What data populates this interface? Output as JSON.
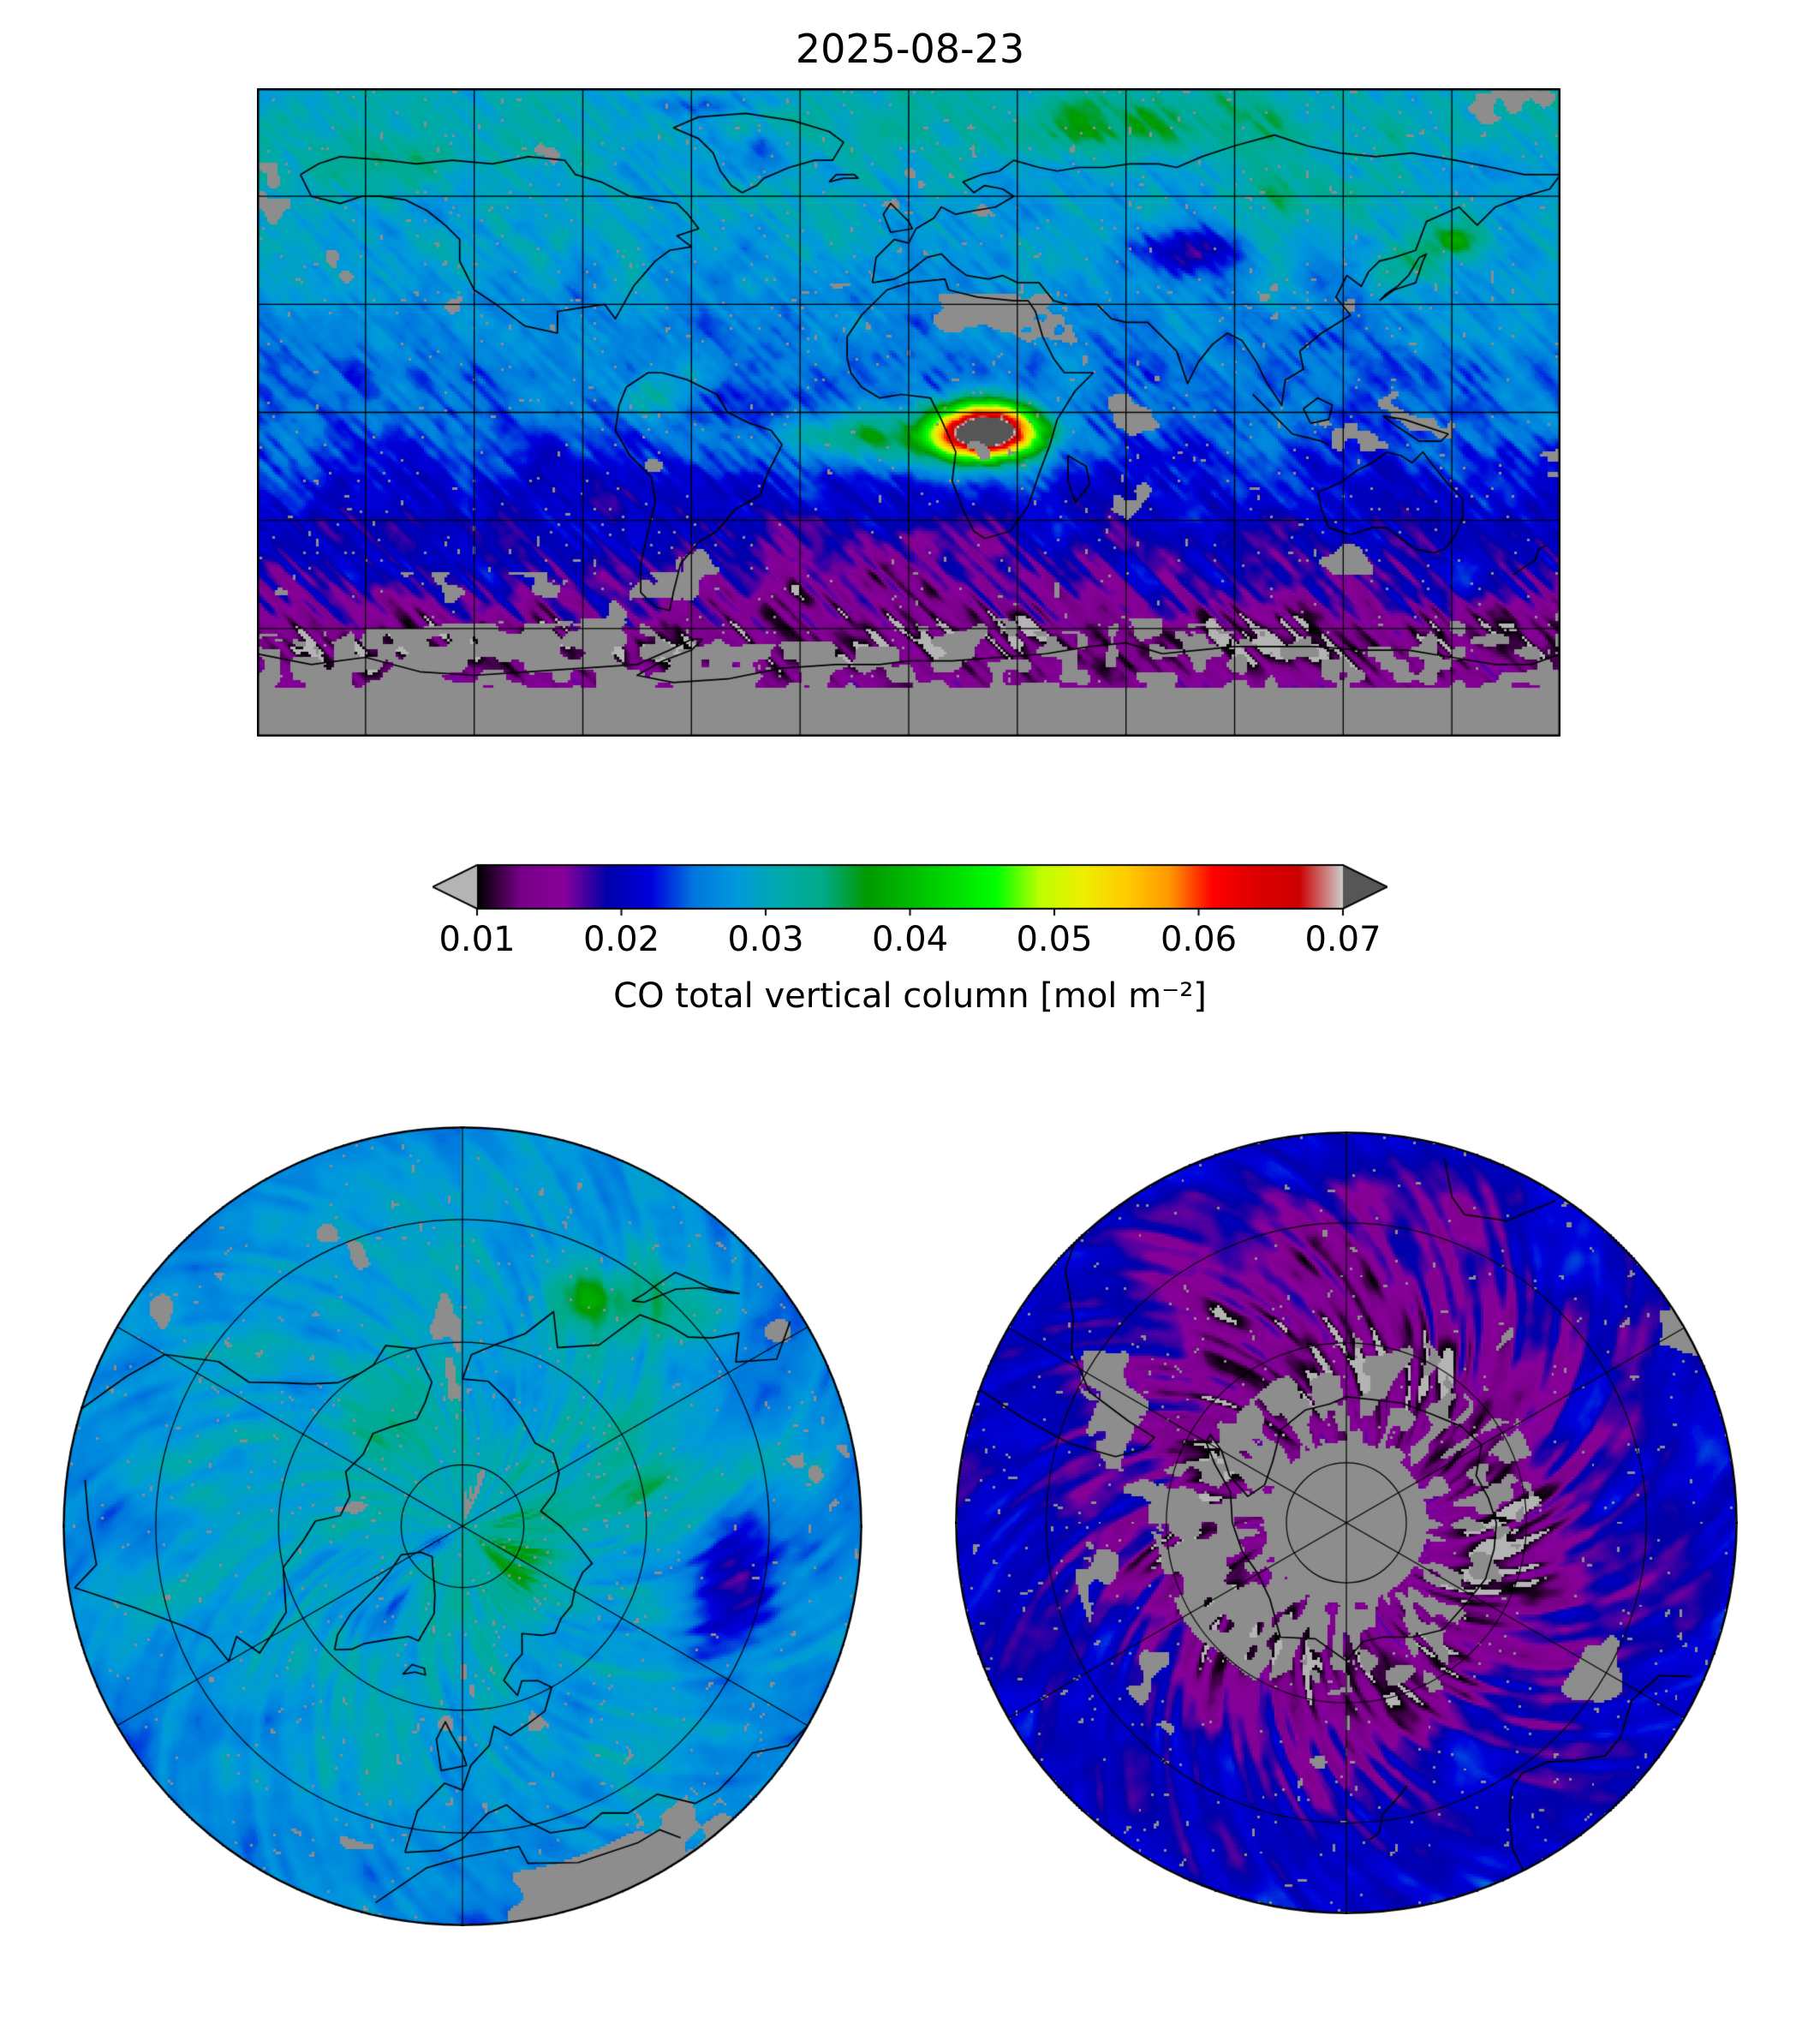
{
  "title": "2025-08-23",
  "colorbar": {
    "label": "CO total vertical column [mol m⁻²]",
    "tick_labels": [
      "0.01",
      "0.02",
      "0.03",
      "0.04",
      "0.05",
      "0.06",
      "0.07"
    ],
    "vmin": 0.01,
    "vmax": 0.07,
    "extend": "both",
    "under_color": "#b4b4b4",
    "over_color": "#565656",
    "missing_color": "#8d8d8d",
    "stops": [
      "#000000",
      "#770088",
      "#880099",
      "#0000aa",
      "#0000dd",
      "#0077dd",
      "#0099dd",
      "#00aaaa",
      "#00aa88",
      "#009900",
      "#00bb00",
      "#00dd00",
      "#00ff00",
      "#bbff00",
      "#eeee00",
      "#ffcc00",
      "#ff9900",
      "#ff0000",
      "#dd0000",
      "#cc0000",
      "#cccccc"
    ]
  },
  "chart_data": {
    "type": "heatmap",
    "title": "2025-08-23",
    "variable": "CO total vertical column",
    "units": "mol m⁻²",
    "colormap": "nipy_spectral-like (black → purple → blue → cyan → green → yellow → orange → red → light gray)",
    "colorbar_range": [
      0.01,
      0.07
    ],
    "colorbar_ticks": [
      0.01,
      0.02,
      0.03,
      0.04,
      0.05,
      0.06,
      0.07
    ],
    "colorbar_extend": "both (light-gray under arrow, dark-gray over arrow)",
    "missing_data": "gray pixels = no retrieval",
    "panels": [
      {
        "name": "global-map",
        "projection": "equirectangular, lon -180..180, lat -90..90, gridlines every 30 deg",
        "features": [
          {
            "region": "Central Africa biomass-burning plume (~20E, 5S)",
            "value_mol_m2": "0.05 to >0.07 (saturated dark-gray core, red/orange/yellow ring)"
          },
          {
            "region": "Tropical Atlantic outflow west of Africa",
            "value_mol_m2": "0.035-0.05"
          },
          {
            "region": "Northern-hemisphere background (oceans and land)",
            "value_mol_m2": "0.026-0.032"
          },
          {
            "region": "Arctic band",
            "value_mol_m2": "0.028-0.035 (teal-green mottling)"
          },
          {
            "region": "Tropical oceans",
            "value_mol_m2": "0.023-0.026"
          },
          {
            "region": "Southern subtropics",
            "value_mol_m2": "0.016-0.022 (blue with purple swaths)"
          },
          {
            "region": "Central Asia low patch (~75E, 45N)",
            "value_mol_m2": "~0.015"
          },
          {
            "region": "Southern ocean ring near 60S",
            "value_mol_m2": "0.012-0.016 (magenta swaths)"
          },
          {
            "region": "Antarctica and far southern ocean",
            "value_mol_m2": "mostly no data (gray)"
          },
          {
            "region": "Sahara / Arabia / Tibet / Andes",
            "value_mol_m2": "patchy no data (gray)"
          }
        ]
      },
      {
        "name": "north-polar-map",
        "projection": "north polar azimuthal, outer edge ~25N, latitude circles ~80/60/40N, meridians every 60 deg",
        "features": [
          {
            "region": "Arctic ocean and land",
            "value_mol_m2": "0.026-0.034 (cyan-teal with green mottling)"
          },
          {
            "region": "Greenland interior",
            "value_mol_m2": "~0.021 (dark blue)"
          },
          {
            "region": "East-Asia edge hotspot",
            "value_mol_m2": "0.035-0.04 (green-yellow)"
          }
        ]
      },
      {
        "name": "south-polar-map",
        "projection": "south polar azimuthal, outer edge ~25S, latitude circles ~80/60/40S, meridians every 60 deg",
        "features": [
          {
            "region": "Southern mid-latitude ocean",
            "value_mol_m2": "0.017-0.022 (blue)"
          },
          {
            "region": "Circum-Antarctic swath ring",
            "value_mol_m2": "0.012-0.015 (magenta/purple streaks)"
          },
          {
            "region": "Antarctic continent interior and Pacific sector",
            "value_mol_m2": "no data (gray)"
          }
        ]
      }
    ]
  }
}
